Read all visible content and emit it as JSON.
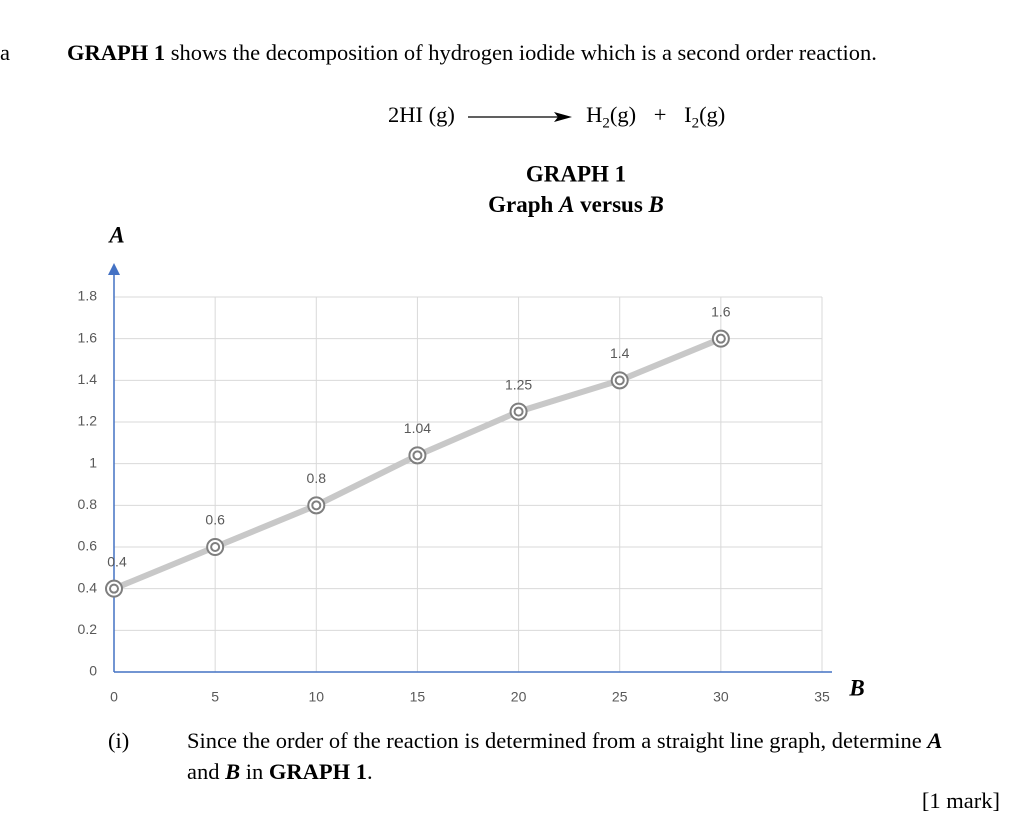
{
  "question": {
    "label": "a",
    "intro_bold": "GRAPH 1",
    "intro_rest": "shows the decomposition of hydrogen iodide which is a second order reaction.",
    "equation": {
      "reactant": "2HI (g)",
      "product_1": {
        "base": "H",
        "sub": "2",
        "state": "(g)"
      },
      "plus": "+",
      "product_2": {
        "base": "I",
        "sub": "2",
        "state": "(g)"
      }
    }
  },
  "chart_data": {
    "type": "line",
    "title": "GRAPH 1",
    "subtitle": {
      "prefix": "Graph",
      "y_symbol": "A",
      "middle": "versus",
      "x_symbol": "B"
    },
    "y_label": "A",
    "x_label": "B",
    "x": [
      0,
      5,
      10,
      15,
      20,
      25,
      30
    ],
    "values": [
      0.4,
      0.6,
      0.8,
      1.04,
      1.25,
      1.4,
      1.6
    ],
    "color": "#c8c8c8",
    "marker_color": "#7f7f7f",
    "axis_color": "#4472c4",
    "xlim": [
      0,
      35
    ],
    "xticks": [
      0,
      5,
      10,
      15,
      20,
      25,
      30,
      35
    ],
    "ylim": [
      0,
      1.8
    ],
    "yticks": [
      0,
      0.2,
      0.4,
      0.6,
      0.8,
      1,
      1.2,
      1.4,
      1.6,
      1.8
    ],
    "grid": true
  },
  "part_i": {
    "label": "(i)",
    "text_1": "Since the order of the reaction is determined from a straight line graph, determine",
    "symbol_a": "A",
    "text_2": "and",
    "symbol_b": "B",
    "text_3": "in",
    "ref_bold": "GRAPH 1",
    "text_4": ".",
    "marks": "[1 mark]"
  }
}
